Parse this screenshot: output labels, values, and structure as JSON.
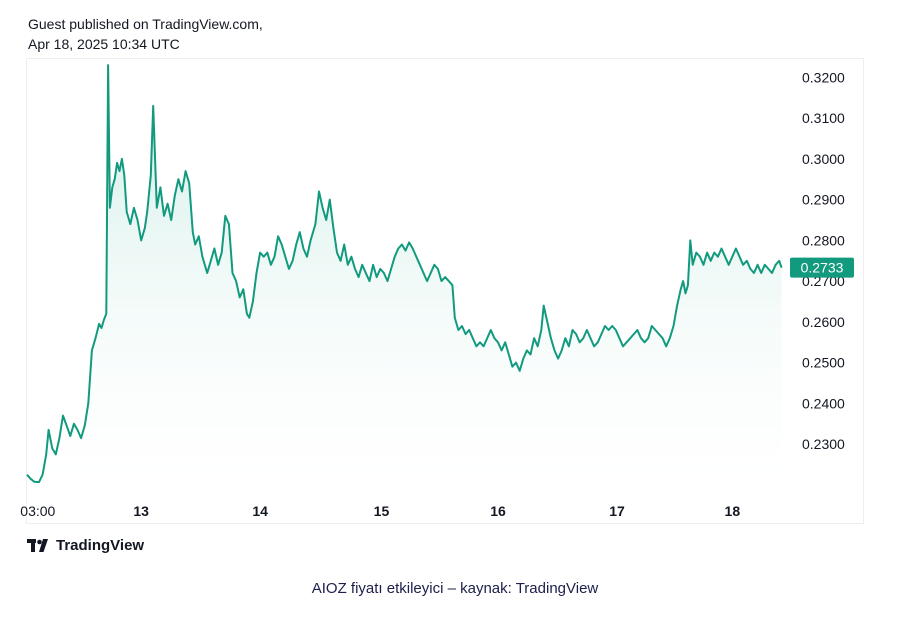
{
  "header": {
    "line1": "Guest published on TradingView.com,",
    "line2": "Apr 18, 2025 10:34 UTC"
  },
  "brand": {
    "name": "TradingView",
    "icon": "tradingview-logo-icon"
  },
  "caption": "AIOZ fiyatı etkileyici – kaynak: TradingView",
  "colors": {
    "line": "#129a7f",
    "fill_top": "#c9ebe3",
    "fill_bottom": "#ffffff",
    "label_bg": "#129a7f"
  },
  "chart_data": {
    "type": "area",
    "title": "",
    "xlabel": "",
    "ylabel": "",
    "x_range": [
      0,
      6.3
    ],
    "ylim": [
      0.219,
      0.3245
    ],
    "y_ticks": [
      "0.3200",
      "0.3100",
      "0.3000",
      "0.2900",
      "0.2800",
      "0.2700",
      "0.2600",
      "0.2500",
      "0.2400",
      "0.2300"
    ],
    "y_tick_values": [
      0.32,
      0.31,
      0.3,
      0.29,
      0.28,
      0.27,
      0.26,
      0.25,
      0.24,
      0.23
    ],
    "x_ticks": [
      {
        "label": "03:00",
        "x": 0.09
      },
      {
        "label": "13",
        "x": 0.95
      },
      {
        "label": "14",
        "x": 1.94
      },
      {
        "label": "15",
        "x": 2.95
      },
      {
        "label": "16",
        "x": 3.92
      },
      {
        "label": "17",
        "x": 4.91
      },
      {
        "label": "18",
        "x": 5.87
      }
    ],
    "last_price": "0.2733",
    "last_value": 0.2733,
    "series": [
      {
        "name": "AIOZ",
        "points": [
          [
            0.0,
            0.2225
          ],
          [
            0.03,
            0.2215
          ],
          [
            0.06,
            0.2208
          ],
          [
            0.1,
            0.2207
          ],
          [
            0.13,
            0.2225
          ],
          [
            0.16,
            0.2275
          ],
          [
            0.18,
            0.2335
          ],
          [
            0.21,
            0.229
          ],
          [
            0.24,
            0.2275
          ],
          [
            0.27,
            0.2315
          ],
          [
            0.3,
            0.237
          ],
          [
            0.33,
            0.2345
          ],
          [
            0.36,
            0.232
          ],
          [
            0.39,
            0.235
          ],
          [
            0.42,
            0.2335
          ],
          [
            0.45,
            0.2315
          ],
          [
            0.48,
            0.2345
          ],
          [
            0.51,
            0.24
          ],
          [
            0.54,
            0.253
          ],
          [
            0.57,
            0.256
          ],
          [
            0.6,
            0.2595
          ],
          [
            0.62,
            0.2585
          ],
          [
            0.64,
            0.2605
          ],
          [
            0.66,
            0.262
          ],
          [
            0.675,
            0.323
          ],
          [
            0.69,
            0.288
          ],
          [
            0.71,
            0.293
          ],
          [
            0.73,
            0.295
          ],
          [
            0.75,
            0.299
          ],
          [
            0.77,
            0.297
          ],
          [
            0.79,
            0.3
          ],
          [
            0.81,
            0.296
          ],
          [
            0.83,
            0.287
          ],
          [
            0.86,
            0.284
          ],
          [
            0.89,
            0.288
          ],
          [
            0.92,
            0.285
          ],
          [
            0.95,
            0.28
          ],
          [
            0.98,
            0.283
          ],
          [
            1.0,
            0.287
          ],
          [
            1.03,
            0.296
          ],
          [
            1.05,
            0.313
          ],
          [
            1.08,
            0.288
          ],
          [
            1.11,
            0.293
          ],
          [
            1.14,
            0.286
          ],
          [
            1.17,
            0.289
          ],
          [
            1.2,
            0.285
          ],
          [
            1.23,
            0.291
          ],
          [
            1.26,
            0.295
          ],
          [
            1.29,
            0.292
          ],
          [
            1.32,
            0.297
          ],
          [
            1.35,
            0.294
          ],
          [
            1.38,
            0.282
          ],
          [
            1.4,
            0.279
          ],
          [
            1.43,
            0.281
          ],
          [
            1.46,
            0.276
          ],
          [
            1.5,
            0.272
          ],
          [
            1.53,
            0.275
          ],
          [
            1.56,
            0.278
          ],
          [
            1.59,
            0.274
          ],
          [
            1.62,
            0.277
          ],
          [
            1.65,
            0.286
          ],
          [
            1.68,
            0.284
          ],
          [
            1.71,
            0.272
          ],
          [
            1.74,
            0.27
          ],
          [
            1.77,
            0.266
          ],
          [
            1.8,
            0.268
          ],
          [
            1.83,
            0.262
          ],
          [
            1.85,
            0.261
          ],
          [
            1.88,
            0.265
          ],
          [
            1.91,
            0.272
          ],
          [
            1.94,
            0.277
          ],
          [
            1.97,
            0.276
          ],
          [
            2.0,
            0.277
          ],
          [
            2.03,
            0.274
          ],
          [
            2.06,
            0.276
          ],
          [
            2.09,
            0.281
          ],
          [
            2.12,
            0.279
          ],
          [
            2.15,
            0.276
          ],
          [
            2.18,
            0.273
          ],
          [
            2.21,
            0.275
          ],
          [
            2.24,
            0.279
          ],
          [
            2.27,
            0.282
          ],
          [
            2.3,
            0.278
          ],
          [
            2.33,
            0.276
          ],
          [
            2.36,
            0.28
          ],
          [
            2.4,
            0.284
          ],
          [
            2.43,
            0.292
          ],
          [
            2.46,
            0.288
          ],
          [
            2.49,
            0.285
          ],
          [
            2.52,
            0.29
          ],
          [
            2.55,
            0.283
          ],
          [
            2.58,
            0.277
          ],
          [
            2.61,
            0.275
          ],
          [
            2.64,
            0.279
          ],
          [
            2.67,
            0.274
          ],
          [
            2.7,
            0.276
          ],
          [
            2.73,
            0.273
          ],
          [
            2.76,
            0.271
          ],
          [
            2.79,
            0.274
          ],
          [
            2.82,
            0.272
          ],
          [
            2.85,
            0.27
          ],
          [
            2.88,
            0.274
          ],
          [
            2.91,
            0.271
          ],
          [
            2.94,
            0.273
          ],
          [
            2.97,
            0.272
          ],
          [
            3.0,
            0.27
          ],
          [
            3.03,
            0.273
          ],
          [
            3.06,
            0.276
          ],
          [
            3.09,
            0.278
          ],
          [
            3.12,
            0.279
          ],
          [
            3.15,
            0.2775
          ],
          [
            3.18,
            0.2795
          ],
          [
            3.21,
            0.278
          ],
          [
            3.24,
            0.276
          ],
          [
            3.27,
            0.274
          ],
          [
            3.3,
            0.272
          ],
          [
            3.33,
            0.27
          ],
          [
            3.36,
            0.272
          ],
          [
            3.39,
            0.274
          ],
          [
            3.42,
            0.273
          ],
          [
            3.45,
            0.27
          ],
          [
            3.48,
            0.271
          ],
          [
            3.51,
            0.27
          ],
          [
            3.54,
            0.269
          ],
          [
            3.56,
            0.261
          ],
          [
            3.59,
            0.258
          ],
          [
            3.62,
            0.259
          ],
          [
            3.65,
            0.257
          ],
          [
            3.68,
            0.258
          ],
          [
            3.71,
            0.256
          ],
          [
            3.74,
            0.254
          ],
          [
            3.77,
            0.255
          ],
          [
            3.8,
            0.254
          ],
          [
            3.83,
            0.256
          ],
          [
            3.86,
            0.258
          ],
          [
            3.89,
            0.256
          ],
          [
            3.92,
            0.255
          ],
          [
            3.95,
            0.253
          ],
          [
            3.98,
            0.255
          ],
          [
            4.01,
            0.252
          ],
          [
            4.04,
            0.249
          ],
          [
            4.07,
            0.25
          ],
          [
            4.1,
            0.248
          ],
          [
            4.13,
            0.251
          ],
          [
            4.16,
            0.253
          ],
          [
            4.19,
            0.252
          ],
          [
            4.22,
            0.256
          ],
          [
            4.25,
            0.254
          ],
          [
            4.28,
            0.258
          ],
          [
            4.3,
            0.264
          ],
          [
            4.33,
            0.26
          ],
          [
            4.36,
            0.256
          ],
          [
            4.39,
            0.253
          ],
          [
            4.42,
            0.251
          ],
          [
            4.45,
            0.253
          ],
          [
            4.48,
            0.256
          ],
          [
            4.51,
            0.254
          ],
          [
            4.54,
            0.258
          ],
          [
            4.57,
            0.257
          ],
          [
            4.6,
            0.255
          ],
          [
            4.63,
            0.256
          ],
          [
            4.66,
            0.258
          ],
          [
            4.69,
            0.256
          ],
          [
            4.72,
            0.254
          ],
          [
            4.75,
            0.255
          ],
          [
            4.78,
            0.257
          ],
          [
            4.81,
            0.259
          ],
          [
            4.84,
            0.258
          ],
          [
            4.87,
            0.259
          ],
          [
            4.9,
            0.258
          ],
          [
            4.93,
            0.256
          ],
          [
            4.96,
            0.254
          ],
          [
            4.99,
            0.255
          ],
          [
            5.02,
            0.256
          ],
          [
            5.05,
            0.257
          ],
          [
            5.08,
            0.258
          ],
          [
            5.11,
            0.256
          ],
          [
            5.14,
            0.255
          ],
          [
            5.17,
            0.256
          ],
          [
            5.2,
            0.259
          ],
          [
            5.23,
            0.258
          ],
          [
            5.26,
            0.257
          ],
          [
            5.29,
            0.256
          ],
          [
            5.32,
            0.254
          ],
          [
            5.35,
            0.256
          ],
          [
            5.38,
            0.259
          ],
          [
            5.41,
            0.264
          ],
          [
            5.44,
            0.268
          ],
          [
            5.46,
            0.27
          ],
          [
            5.48,
            0.267
          ],
          [
            5.5,
            0.269
          ],
          [
            5.52,
            0.28
          ],
          [
            5.54,
            0.274
          ],
          [
            5.57,
            0.277
          ],
          [
            5.6,
            0.276
          ],
          [
            5.63,
            0.274
          ],
          [
            5.66,
            0.277
          ],
          [
            5.69,
            0.275
          ],
          [
            5.72,
            0.277
          ],
          [
            5.75,
            0.276
          ],
          [
            5.78,
            0.278
          ],
          [
            5.81,
            0.276
          ],
          [
            5.84,
            0.274
          ],
          [
            5.87,
            0.276
          ],
          [
            5.9,
            0.278
          ],
          [
            5.93,
            0.276
          ],
          [
            5.96,
            0.274
          ],
          [
            5.99,
            0.275
          ],
          [
            6.02,
            0.273
          ],
          [
            6.05,
            0.272
          ],
          [
            6.08,
            0.274
          ],
          [
            6.11,
            0.272
          ],
          [
            6.14,
            0.274
          ],
          [
            6.17,
            0.273
          ],
          [
            6.2,
            0.272
          ],
          [
            6.23,
            0.274
          ],
          [
            6.26,
            0.275
          ],
          [
            6.28,
            0.2733
          ]
        ]
      }
    ]
  }
}
